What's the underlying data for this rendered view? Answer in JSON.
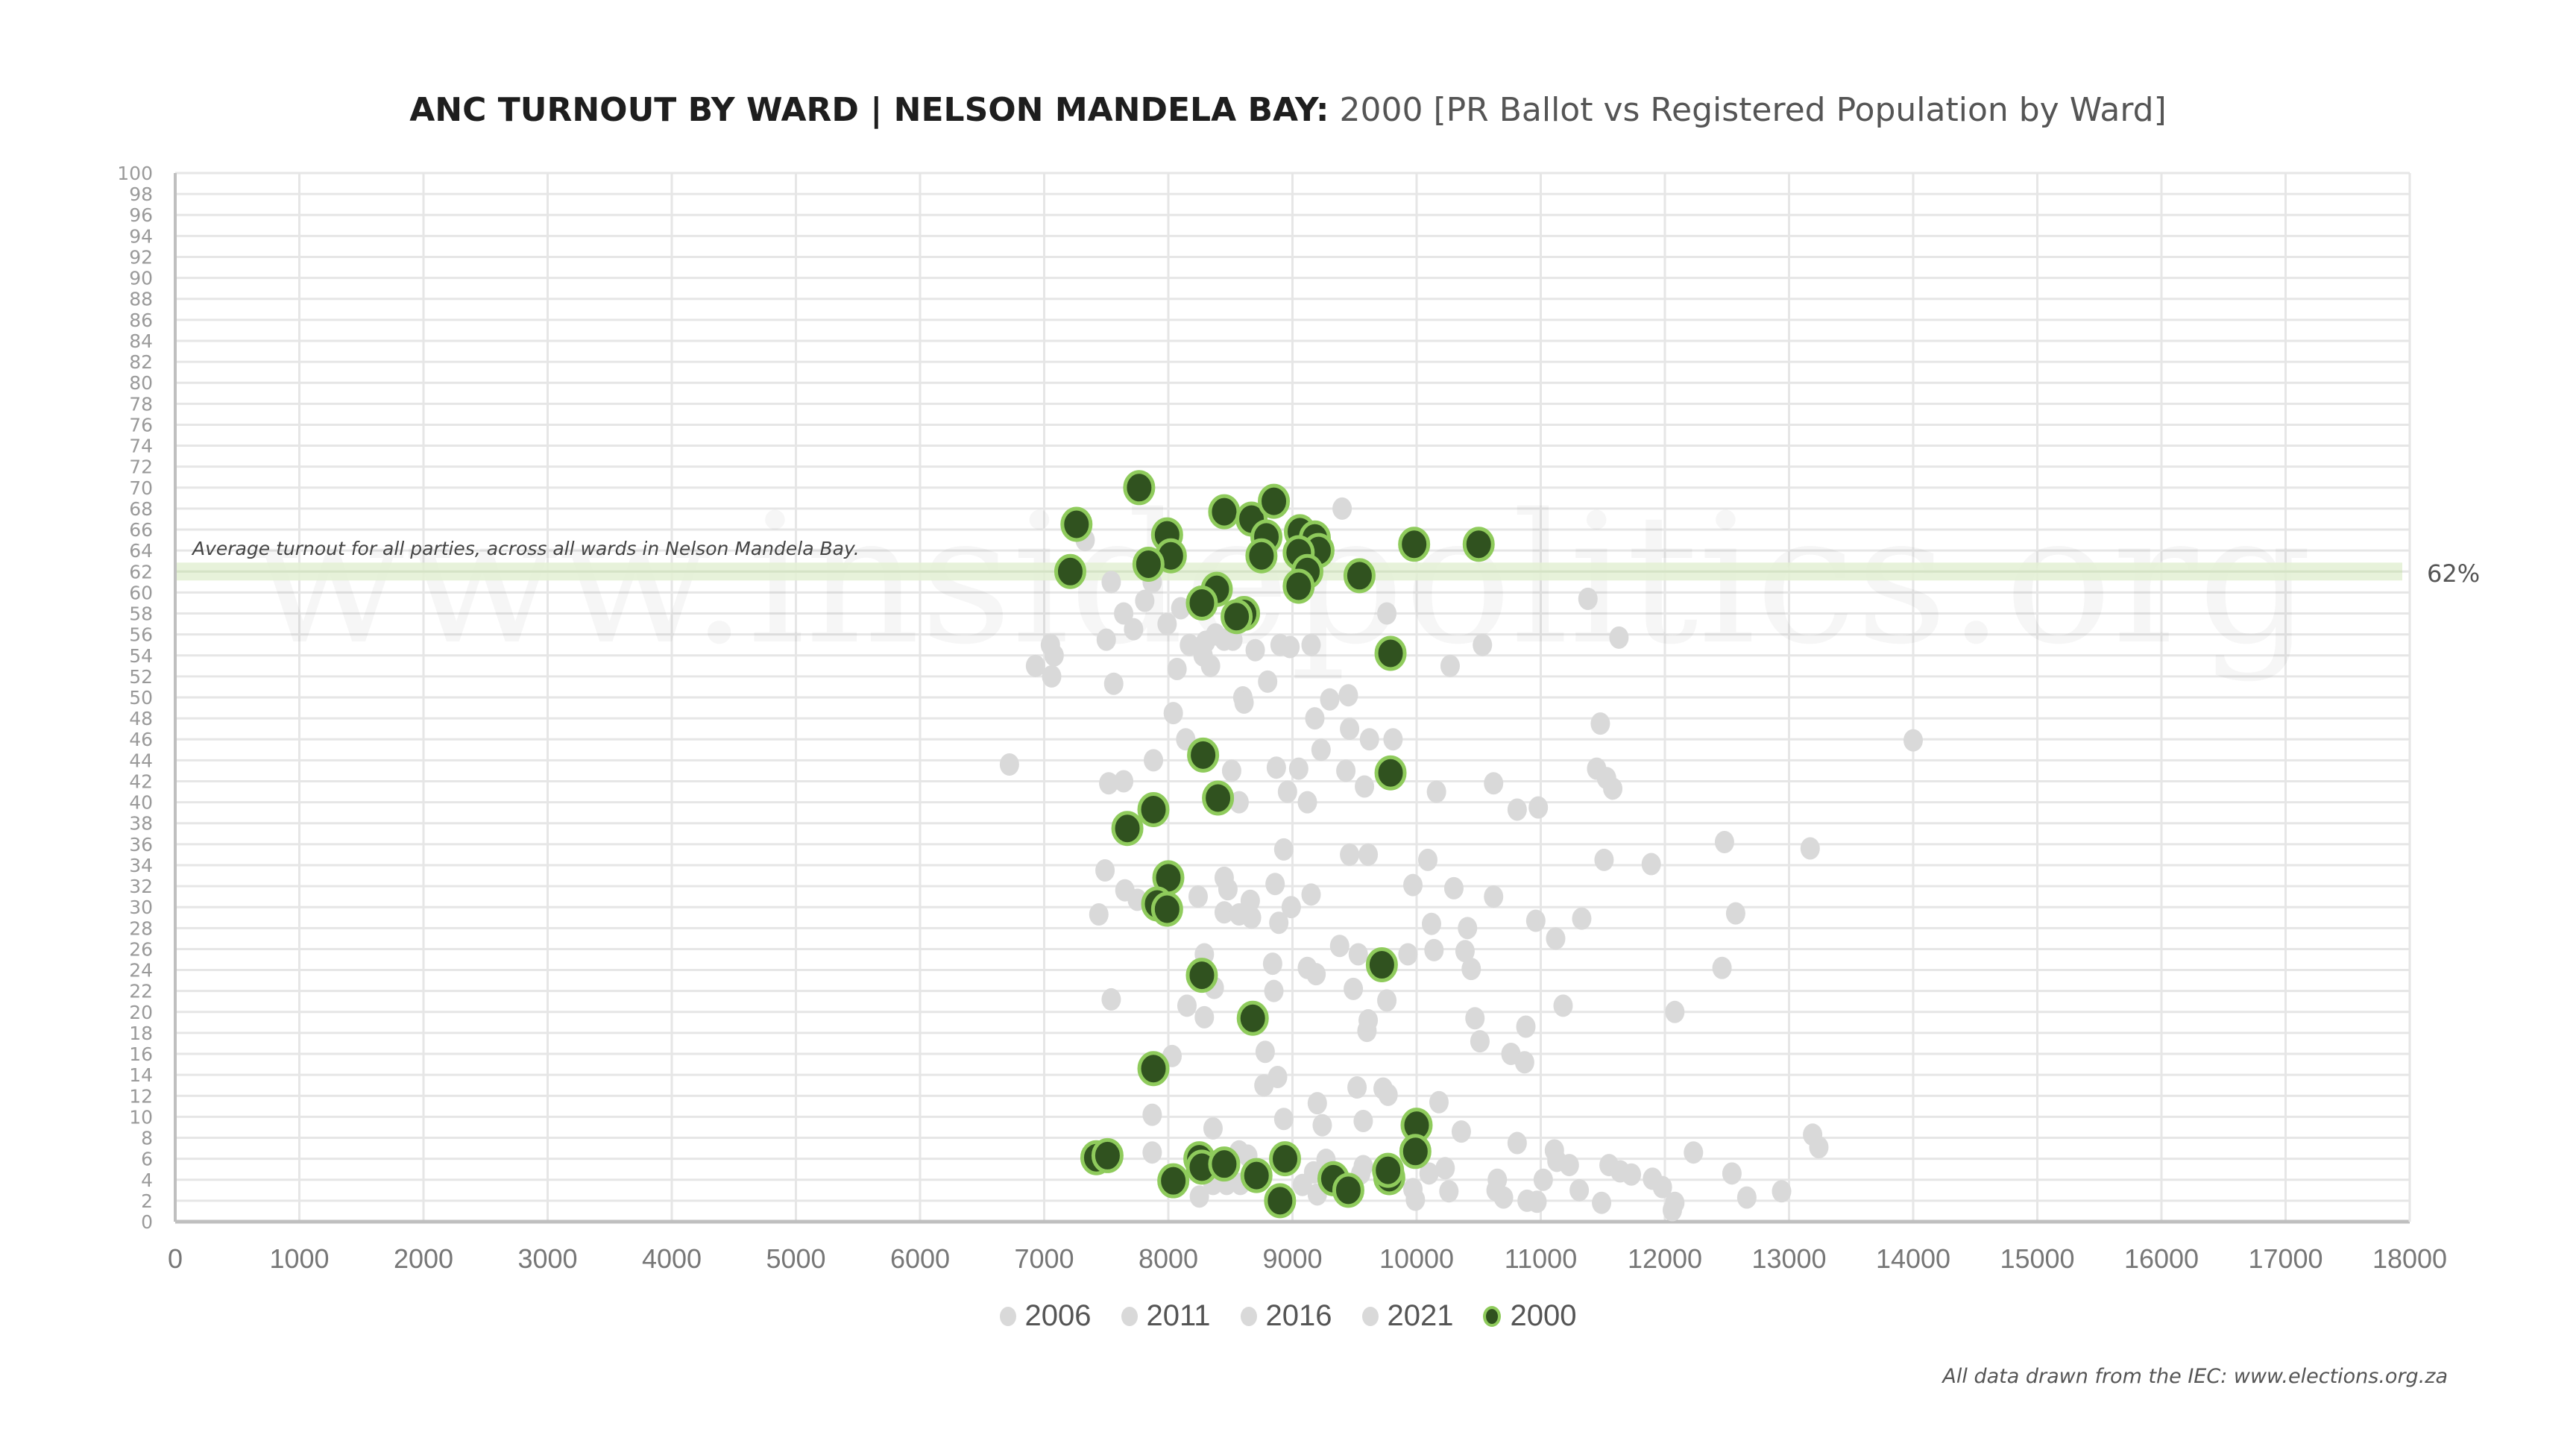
{
  "title": {
    "bold": "ANC TURNOUT BY WARD | NELSON MANDELA BAY:",
    "light": "2000 [PR Ballot vs Registered Population by Ward]"
  },
  "watermark": "www.insidepolitics.org",
  "annotation": "Average turnout for all parties, across all wards in Nelson Mandela Bay.",
  "avg_label": "62%",
  "footer": "All data drawn from the IEC: www.elections.org.za",
  "colors": {
    "grey": "#d9d9d9",
    "green_fill": "#30521f",
    "green_stroke": "#8fcb5c",
    "avg_band": "#e3f0d4",
    "grid": "#e6e6e6",
    "axis": "#bfbfbf"
  },
  "chart_data": {
    "type": "scatter",
    "title": "ANC TURNOUT BY WARD | NELSON MANDELA BAY: 2000 [PR Ballot vs Registered Population by Ward]",
    "xlabel": "",
    "ylabel": "",
    "xlim": [
      0,
      18000
    ],
    "ylim": [
      0,
      100
    ],
    "x_ticks": [
      "0",
      "1000",
      "2000",
      "3000",
      "4000",
      "5000",
      "6000",
      "7000",
      "8000",
      "9000",
      "10000",
      "11000",
      "12000",
      "13000",
      "14000",
      "15000",
      "16000",
      "17000",
      "18000"
    ],
    "y_ticks": [
      "0",
      "2",
      "4",
      "6",
      "8",
      "10",
      "12",
      "14",
      "16",
      "18",
      "20",
      "22",
      "24",
      "26",
      "28",
      "30",
      "32",
      "34",
      "36",
      "38",
      "40",
      "42",
      "44",
      "46",
      "48",
      "50",
      "52",
      "54",
      "56",
      "58",
      "60",
      "62",
      "64",
      "66",
      "68",
      "70",
      "72",
      "74",
      "76",
      "78",
      "80",
      "82",
      "84",
      "86",
      "88",
      "90",
      "92",
      "94",
      "96",
      "98",
      "100"
    ],
    "grid": true,
    "legend_position": "bottom",
    "reference_line": {
      "y": 62,
      "label": "62%"
    },
    "series": [
      {
        "name": "2006",
        "color": "#d9d9d9",
        "points": [
          [
            6720,
            43.6
          ],
          [
            7050,
            55
          ],
          [
            7080,
            54
          ],
          [
            6930,
            53
          ],
          [
            7060,
            52
          ],
          [
            7330,
            65
          ],
          [
            7540,
            61
          ],
          [
            7640,
            58
          ],
          [
            7720,
            56.5
          ],
          [
            7560,
            51.3
          ],
          [
            7500,
            55.5
          ],
          [
            7810,
            59.2
          ],
          [
            7870,
            61
          ],
          [
            7990,
            57
          ],
          [
            8100,
            58.5
          ],
          [
            8070,
            52.7
          ],
          [
            8170,
            55
          ],
          [
            8280,
            54
          ],
          [
            8340,
            53
          ],
          [
            8300,
            55.3
          ],
          [
            8380,
            56
          ],
          [
            8450,
            55.5
          ],
          [
            8520,
            55.5
          ],
          [
            8700,
            54.5
          ],
          [
            8800,
            51.5
          ],
          [
            8900,
            55
          ],
          [
            8980,
            54.8
          ],
          [
            9150,
            55
          ],
          [
            9400,
            68
          ],
          [
            9760,
            58
          ]
        ]
      },
      {
        "name": "2011",
        "color": "#d9d9d9",
        "points": [
          [
            8600,
            50
          ],
          [
            8610,
            49.5
          ],
          [
            9300,
            49.8
          ],
          [
            9450,
            50.2
          ],
          [
            9180,
            48
          ],
          [
            8040,
            48.5
          ],
          [
            9460,
            47
          ],
          [
            9620,
            46
          ],
          [
            9810,
            46
          ],
          [
            9230,
            45
          ],
          [
            8140,
            46
          ],
          [
            8510,
            43
          ],
          [
            8870,
            43.3
          ],
          [
            9050,
            43.2
          ],
          [
            9430,
            43
          ],
          [
            9580,
            41.5
          ],
          [
            10160,
            41
          ],
          [
            8570,
            40
          ],
          [
            8960,
            41
          ],
          [
            9120,
            40
          ],
          [
            7640,
            42
          ],
          [
            7520,
            41.8
          ],
          [
            7880,
            44
          ],
          [
            10620,
            41.8
          ],
          [
            10810,
            39.3
          ],
          [
            10980,
            39.5
          ],
          [
            11480,
            47.5
          ],
          [
            11450,
            43.2
          ],
          [
            11530,
            42.3
          ],
          [
            11580,
            41.3
          ]
        ]
      },
      {
        "name": "2016",
        "color": "#d9d9d9",
        "points": [
          [
            8930,
            35.5
          ],
          [
            9460,
            35
          ],
          [
            9610,
            35
          ],
          [
            10090,
            34.5
          ],
          [
            7490,
            33.5
          ],
          [
            7650,
            31.6
          ],
          [
            7750,
            30.7
          ],
          [
            7440,
            29.3
          ],
          [
            8240,
            31
          ],
          [
            8450,
            32.8
          ],
          [
            8480,
            31.7
          ],
          [
            8660,
            30.6
          ],
          [
            8860,
            32.2
          ],
          [
            8990,
            30
          ],
          [
            9150,
            31.2
          ],
          [
            8450,
            29.5
          ],
          [
            8570,
            29.3
          ],
          [
            8670,
            29
          ],
          [
            8890,
            28.5
          ],
          [
            9970,
            32.1
          ],
          [
            10300,
            31.8
          ],
          [
            10620,
            31
          ],
          [
            10120,
            28.4
          ],
          [
            10410,
            28
          ],
          [
            10960,
            28.7
          ],
          [
            11120,
            27
          ],
          [
            11330,
            28.9
          ],
          [
            11510,
            34.5
          ],
          [
            11890,
            34.1
          ],
          [
            12480,
            36.2
          ]
        ]
      },
      {
        "name": "2021",
        "color": "#d9d9d9",
        "points": [
          [
            8290,
            25.5
          ],
          [
            8840,
            24.6
          ],
          [
            9120,
            24.2
          ],
          [
            9190,
            23.6
          ],
          [
            9380,
            26.3
          ],
          [
            9530,
            25.5
          ],
          [
            9930,
            25.5
          ],
          [
            10140,
            25.9
          ],
          [
            10440,
            24.1
          ],
          [
            10390,
            25.8
          ],
          [
            8370,
            22.3
          ],
          [
            8850,
            22
          ],
          [
            9490,
            22.2
          ],
          [
            9760,
            21.1
          ],
          [
            8150,
            20.6
          ],
          [
            7540,
            21.2
          ],
          [
            8290,
            19.5
          ],
          [
            9610,
            19.2
          ],
          [
            9600,
            18.2
          ],
          [
            10470,
            19.4
          ],
          [
            10880,
            18.6
          ],
          [
            10760,
            16
          ],
          [
            10870,
            15.2
          ],
          [
            10510,
            17.2
          ],
          [
            8030,
            15.8
          ],
          [
            8780,
            16.2
          ],
          [
            8880,
            13.8
          ],
          [
            8770,
            13
          ],
          [
            9730,
            12.7
          ],
          [
            9520,
            12.8
          ],
          [
            10180,
            11.4
          ],
          [
            9200,
            11.3
          ],
          [
            9770,
            12.1
          ],
          [
            7870,
            10.2
          ],
          [
            8930,
            9.8
          ],
          [
            9240,
            9.2
          ],
          [
            9570,
            9.6
          ],
          [
            10360,
            8.6
          ],
          [
            10810,
            7.5
          ],
          [
            11110,
            6.8
          ],
          [
            11130,
            5.8
          ],
          [
            11230,
            5.4
          ],
          [
            11550,
            5.4
          ],
          [
            11640,
            4.8
          ],
          [
            11730,
            4.5
          ],
          [
            11900,
            4.1
          ],
          [
            11980,
            3.3
          ],
          [
            12080,
            1.8
          ],
          [
            12060,
            1.1
          ],
          [
            12230,
            6.6
          ],
          [
            12540,
            4.6
          ],
          [
            12660,
            2.3
          ],
          [
            12940,
            2.9
          ],
          [
            13190,
            8.3
          ],
          [
            13240,
            7.1
          ],
          [
            13170,
            35.6
          ],
          [
            12570,
            29.4
          ],
          [
            12460,
            24.2
          ],
          [
            12080,
            20
          ],
          [
            14000,
            45.9
          ],
          [
            11180,
            20.6
          ],
          [
            11310,
            3
          ],
          [
            11490,
            1.8
          ],
          [
            11020,
            4
          ],
          [
            10970,
            1.9
          ],
          [
            10890,
            2
          ],
          [
            10650,
            4
          ],
          [
            10640,
            3
          ],
          [
            10700,
            2.3
          ],
          [
            10260,
            2.9
          ],
          [
            10230,
            5.1
          ],
          [
            10100,
            4.6
          ],
          [
            9970,
            3.1
          ],
          [
            9990,
            2.1
          ],
          [
            9570,
            5.3
          ],
          [
            9550,
            4.6
          ],
          [
            9270,
            5.9
          ],
          [
            9170,
            4.7
          ],
          [
            9200,
            2.6
          ],
          [
            9080,
            3.5
          ],
          [
            8640,
            6.3
          ],
          [
            8570,
            6.7
          ],
          [
            8430,
            6
          ],
          [
            8580,
            3.6
          ],
          [
            8470,
            3.6
          ],
          [
            8360,
            3.6
          ],
          [
            8250,
            2.4
          ],
          [
            8360,
            8.9
          ],
          [
            7870,
            6.6
          ],
          [
            11380,
            59.4
          ],
          [
            10530,
            55
          ],
          [
            11630,
            55.7
          ],
          [
            10270,
            53
          ]
        ]
      },
      {
        "name": "2000",
        "color": "#30521f",
        "stroke": "#8fcb5c",
        "points": [
          [
            7765,
            70
          ],
          [
            7260,
            66.5
          ],
          [
            7990,
            65.5
          ],
          [
            8020,
            63.5
          ],
          [
            7210,
            62
          ],
          [
            7840,
            62.7
          ],
          [
            8450,
            67.7
          ],
          [
            8670,
            67
          ],
          [
            8850,
            68.7
          ],
          [
            8790,
            65.3
          ],
          [
            8750,
            63.5
          ],
          [
            9060,
            65.8
          ],
          [
            9180,
            65.2
          ],
          [
            9210,
            64
          ],
          [
            9050,
            63.8
          ],
          [
            9120,
            62
          ],
          [
            9050,
            60.6
          ],
          [
            9540,
            61.6
          ],
          [
            9980,
            64.6
          ],
          [
            10500,
            64.6
          ],
          [
            8390,
            60.3
          ],
          [
            8270,
            59
          ],
          [
            8610,
            58
          ],
          [
            8550,
            57.7
          ],
          [
            9790,
            54.2
          ],
          [
            8280,
            44.5
          ],
          [
            9790,
            42.8
          ],
          [
            8400,
            40.4
          ],
          [
            7880,
            39.3
          ],
          [
            7670,
            37.5
          ],
          [
            8000,
            32.8
          ],
          [
            7910,
            30.3
          ],
          [
            7990,
            29.8
          ],
          [
            9720,
            24.5
          ],
          [
            8270,
            23.5
          ],
          [
            8680,
            19.4
          ],
          [
            7880,
            14.6
          ],
          [
            10000,
            9.2
          ],
          [
            9990,
            6.7
          ],
          [
            7420,
            6.1
          ],
          [
            7510,
            6.3
          ],
          [
            8250,
            6.0
          ],
          [
            8270,
            5.2
          ],
          [
            8450,
            5.5
          ],
          [
            8940,
            6.0
          ],
          [
            8040,
            3.9
          ],
          [
            8710,
            4.4
          ],
          [
            9330,
            4.1
          ],
          [
            9780,
            4.2
          ],
          [
            9770,
            4.9
          ],
          [
            8900,
            2.0
          ],
          [
            9450,
            3.0
          ]
        ]
      }
    ]
  }
}
